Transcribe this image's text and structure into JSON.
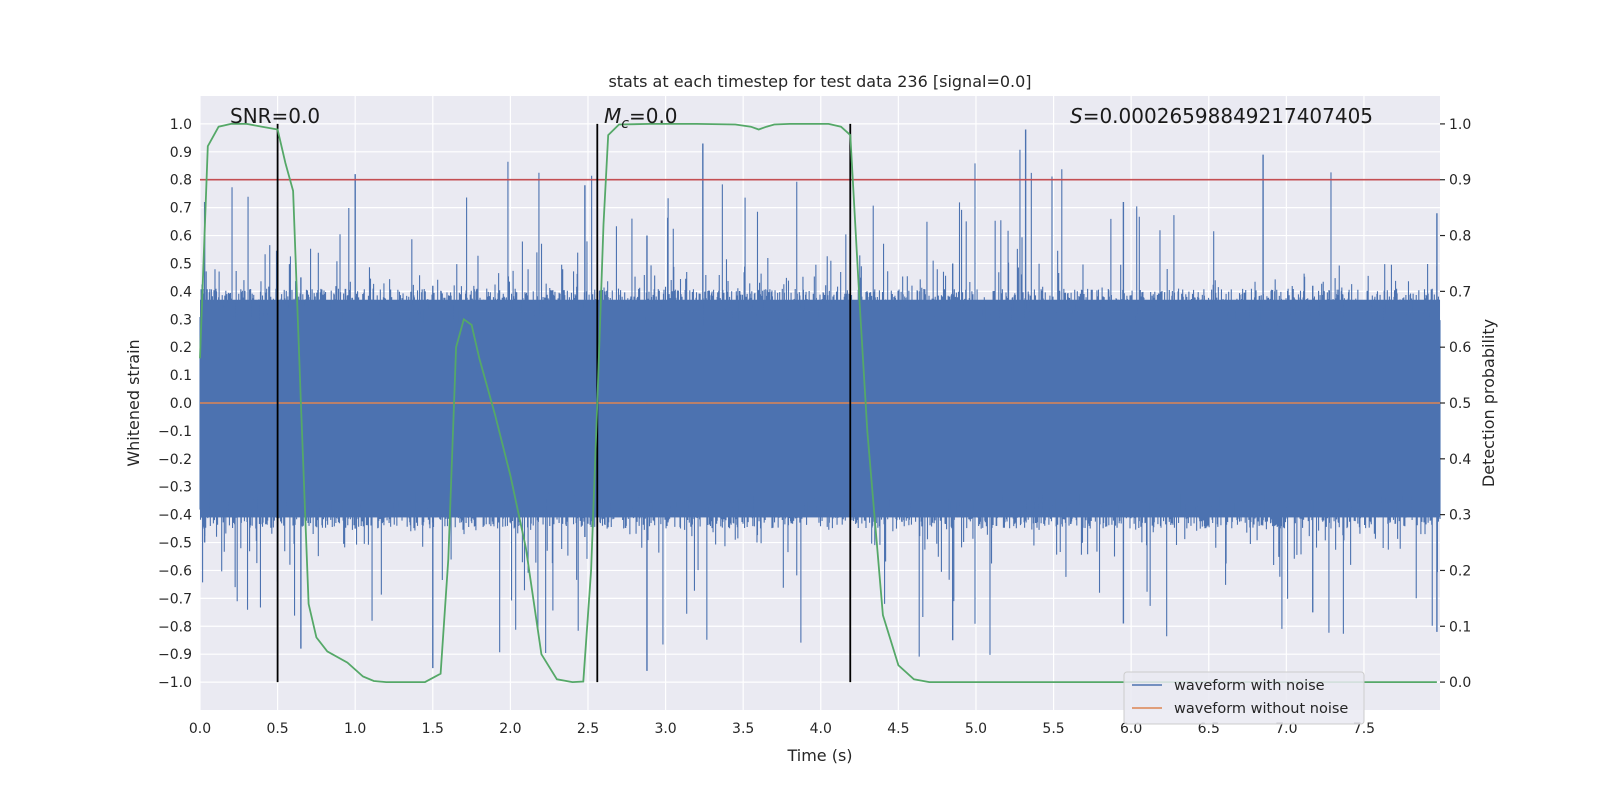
{
  "chart_data": {
    "type": "line",
    "title": "stats at each timestep for test data 236 [signal=0.0]",
    "xlabel": "Time (s)",
    "ylabel": "Whitened strain",
    "y2label": "Detection probability",
    "xlim": [
      0.0,
      7.99
    ],
    "ylim": [
      -1.1,
      1.1
    ],
    "y2lim": [
      -0.05,
      1.05
    ],
    "xticks": [
      "0.0",
      "0.5",
      "1.0",
      "1.5",
      "2.0",
      "2.5",
      "3.0",
      "3.5",
      "4.0",
      "4.5",
      "5.0",
      "5.5",
      "6.0",
      "6.5",
      "7.0",
      "7.5"
    ],
    "yticks": [
      "−1.0",
      "−0.9",
      "−0.8",
      "−0.7",
      "−0.6",
      "−0.5",
      "−0.4",
      "−0.3",
      "−0.2",
      "−0.1",
      "0.0",
      "0.1",
      "0.2",
      "0.3",
      "0.4",
      "0.5",
      "0.6",
      "0.7",
      "0.8",
      "0.9",
      "1.0"
    ],
    "y2ticks": [
      "0.0",
      "0.1",
      "0.2",
      "0.3",
      "0.4",
      "0.5",
      "0.6",
      "0.7",
      "0.8",
      "0.9",
      "1.0"
    ],
    "threshold": 0.9,
    "annotations": {
      "snr": "SNR=0.0",
      "mc_symbol": "M",
      "mc_sub": "c",
      "mc_value": "=0.0",
      "s_symbol": "S",
      "s_value": "=0.00026598849217407405"
    },
    "vlines": [
      0.5,
      2.56,
      4.19
    ],
    "series": [
      {
        "name": "waveform with noise",
        "color": "#4c72b0",
        "kind": "noise",
        "bulk_low": -0.41,
        "bulk_high": 0.37
      },
      {
        "name": "waveform without noise",
        "color": "#dd8452",
        "kind": "flat",
        "value": 0.0
      },
      {
        "name": "detection probability",
        "color": "#55a868",
        "axis": "y2",
        "x": [
          0.0,
          0.05,
          0.12,
          0.2,
          0.3,
          0.4,
          0.5,
          0.55,
          0.6,
          0.65,
          0.7,
          0.75,
          0.82,
          0.95,
          1.05,
          1.12,
          1.2,
          1.35,
          1.45,
          1.55,
          1.6,
          1.65,
          1.7,
          1.75,
          1.8,
          1.9,
          2.0,
          2.1,
          2.2,
          2.3,
          2.4,
          2.47,
          2.52,
          2.56,
          2.6,
          2.63,
          2.7,
          2.9,
          3.2,
          3.45,
          3.55,
          3.6,
          3.65,
          3.7,
          3.8,
          4.05,
          4.13,
          4.19,
          4.25,
          4.3,
          4.4,
          4.5,
          4.6,
          4.7,
          4.8,
          5.5,
          7.97
        ],
        "y": [
          0.58,
          0.96,
          0.995,
          1.0,
          1.0,
          0.995,
          0.99,
          0.93,
          0.88,
          0.5,
          0.14,
          0.08,
          0.055,
          0.035,
          0.01,
          0.002,
          0.0,
          0.0,
          0.0,
          0.015,
          0.22,
          0.6,
          0.65,
          0.64,
          0.58,
          0.48,
          0.37,
          0.24,
          0.05,
          0.005,
          0.0,
          0.001,
          0.2,
          0.5,
          0.82,
          0.98,
          0.999,
          1.0,
          1.0,
          0.999,
          0.995,
          0.99,
          0.995,
          0.999,
          1.0,
          1.0,
          0.995,
          0.98,
          0.68,
          0.45,
          0.12,
          0.03,
          0.005,
          0.0,
          0.0,
          0.0,
          0.0
        ]
      }
    ],
    "legend": [
      "waveform with noise",
      "waveform without noise"
    ]
  }
}
